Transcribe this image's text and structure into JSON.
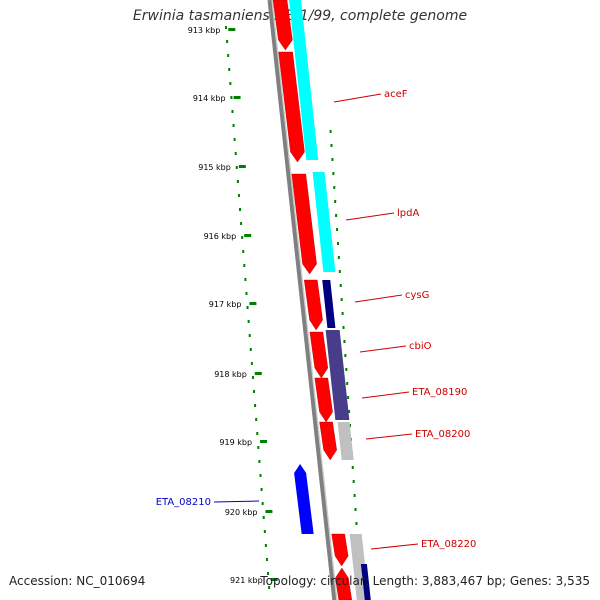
{
  "title": "Erwinia tasmaniensis Et1/99, complete genome",
  "accession_text": "Accession: NC_010694",
  "summary_text": "Topology: circular; Length: 3,883,467 bp; Genes: 3,535",
  "colors": {
    "forward_cds": "#ff0000",
    "reverse_cds": "#0000ff",
    "backbone": "#808080",
    "scale": "#008000",
    "cog_aceF": "#00ffff",
    "cog_lpdA": "#00ffff",
    "cog_cysG": "#000080",
    "cog_cbiO": "#483d8b",
    "cog_grey": "#c0c0c0",
    "label_forward": "#cc0000",
    "label_reverse": "#0000cc"
  },
  "scale_ticks": [
    "913 kbp",
    "914 kbp",
    "915 kbp",
    "916 kbp",
    "917 kbp",
    "918 kbp",
    "919 kbp",
    "920 kbp",
    "921 kbp"
  ],
  "genes": [
    {
      "label": "",
      "strand": "forward"
    },
    {
      "label": "aceF",
      "strand": "forward"
    },
    {
      "label": "lpdA",
      "strand": "forward"
    },
    {
      "label": "cysG",
      "strand": "forward"
    },
    {
      "label": "cbiO",
      "strand": "forward"
    },
    {
      "label": "ETA_08190",
      "strand": "forward"
    },
    {
      "label": "ETA_08200",
      "strand": "forward"
    },
    {
      "label": "ETA_08210",
      "strand": "reverse"
    },
    {
      "label": "ETA_08220",
      "strand": "forward"
    }
  ]
}
